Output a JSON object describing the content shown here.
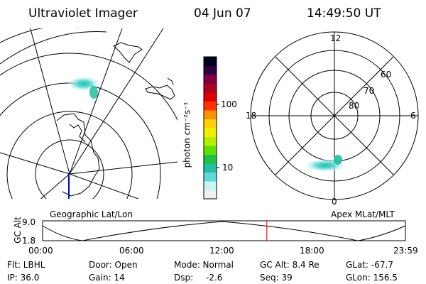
{
  "header": {
    "title": "Ultraviolet Imager",
    "date": "04 Jun 07",
    "time": "14:49:50 UT"
  },
  "colorbar": {
    "unit_label": "photon cm⁻²s⁻¹",
    "tick_labels": [
      "100",
      "10"
    ],
    "colors": [
      "#f0f0f0",
      "#c8f4f4",
      "#60d8d8",
      "#20c0a0",
      "#20c040",
      "#60e000",
      "#b0f000",
      "#f0f000",
      "#ffd000",
      "#ff9000",
      "#ff3000",
      "#e00000",
      "#b00020",
      "#800040",
      "#300040",
      "#000020"
    ]
  },
  "left_map": {
    "label": "Geographic Lat/Lon"
  },
  "right_map": {
    "label": "Apex MLat/MLT",
    "mlt_labels": {
      "top": "12",
      "left": "18",
      "right": "6",
      "bottom": "0"
    },
    "lat_labels": [
      "60",
      "70",
      "80"
    ]
  },
  "altitude_plot": {
    "ylabel": "GC Alt",
    "ytick_labels": [
      "9.0",
      "1.8"
    ],
    "xtick_labels": [
      "00:00",
      "06:00",
      "12:00",
      "18:00",
      "23:59"
    ],
    "current_time_fraction": 0.618
  },
  "info": {
    "row1": {
      "flt": "Flt: LBHL",
      "door": "Door: Open",
      "mode": "Mode: Normal",
      "gcalt": "GC Alt: 8.4 Re",
      "glat": "GLat: -67.7"
    },
    "row2": {
      "ip": "IP: 36.0",
      "gain": "Gain: 14",
      "dsp": "Dsp:",
      "dsp_value": "-2.6",
      "seq": "Seq: 39",
      "glon": "GLon: 156.5"
    }
  }
}
